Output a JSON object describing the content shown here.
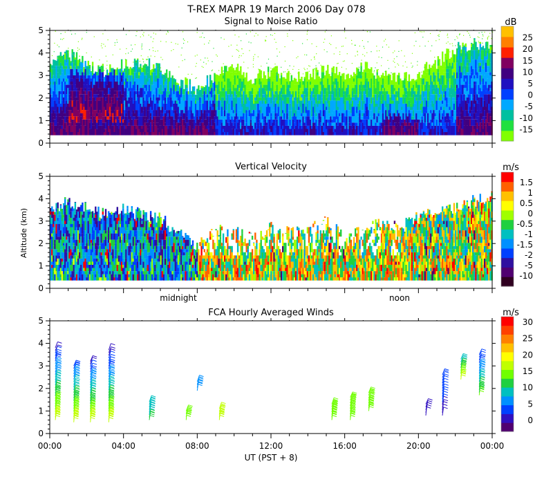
{
  "header": {
    "title": "T-REX   MAPR 19 March 2006 Day 078"
  },
  "shared": {
    "ylabel": "Altitude (km)",
    "y_ticks": [
      "0",
      "1",
      "2",
      "3",
      "4",
      "5"
    ],
    "ylim": [
      0,
      5
    ],
    "xlim": [
      0,
      24
    ],
    "x_major_ticks": [
      0,
      4,
      8,
      12,
      16,
      20,
      24
    ],
    "x_tick_labels": [
      "00:00",
      "04:00",
      "08:00",
      "12:00",
      "16:00",
      "20:00",
      "00:00"
    ],
    "xlabel": "UT   (PST + 8)",
    "local_labels": {
      "midnight": "midnight",
      "noon": "noon"
    },
    "local_positions": {
      "midnight": 8,
      "noon": 20
    }
  },
  "chart_data": [
    {
      "type": "heatmap",
      "title": "Signal to Noise Ratio",
      "units": "dB",
      "colorbar_labels": [
        "-15",
        "-10",
        "-5",
        "0",
        "5",
        "10",
        "15",
        "20",
        "25"
      ],
      "colorbar_colors": [
        "#80ff00",
        "#20e040",
        "#00c0a0",
        "#00a8ff",
        "#0040ff",
        "#2010c0",
        "#400080",
        "#800060",
        "#ff2000",
        "#ff8000",
        "#ffc000"
      ],
      "echo_top_km": [
        3.4,
        4.0,
        3.5,
        3.2,
        3.5,
        3.6,
        3.3,
        2.8,
        2.4,
        3.0,
        3.3,
        2.9,
        3.2,
        3.0,
        2.9,
        3.3,
        3.0,
        3.4,
        3.0,
        2.9,
        3.1,
        3.6,
        4.2,
        4.4,
        4.5
      ],
      "color_stops": [
        -15,
        -12,
        -9,
        -5,
        -2,
        2,
        6,
        10,
        14,
        20,
        26
      ]
    },
    {
      "type": "heatmap",
      "title": "Vertical Velocity",
      "units": "m/s",
      "colorbar_labels": [
        "-10",
        "-5",
        "-2",
        "-1.5",
        "-1",
        "-0.5",
        "0",
        "0.5",
        "1",
        "1.5"
      ],
      "colorbar_colors": [
        "#300020",
        "#500070",
        "#3010a0",
        "#0040ff",
        "#0090ff",
        "#00c0c0",
        "#20d040",
        "#a0ff00",
        "#ffff00",
        "#ffc000",
        "#ff6000",
        "#ff0000"
      ],
      "echo_top_km": [
        3.3,
        3.9,
        3.6,
        3.3,
        3.5,
        3.3,
        3.1,
        2.5,
        1.9,
        2.6,
        2.5,
        2.2,
        2.7,
        2.5,
        2.6,
        3.0,
        2.3,
        2.6,
        3.0,
        2.7,
        3.2,
        3.3,
        3.6,
        3.9,
        4.1
      ],
      "color_stops": [
        -10,
        -5,
        -2,
        -1.5,
        -1,
        -0.5,
        0,
        0.25,
        0.5,
        1,
        1.5,
        2
      ]
    },
    {
      "type": "barbs",
      "title": "FCA Hourly Averaged Winds",
      "units": "m/s",
      "colorbar_labels": [
        "0",
        "5",
        "10",
        "15",
        "20",
        "25",
        "30"
      ],
      "colorbar_colors": [
        "#500070",
        "#3010c0",
        "#0040ff",
        "#0090ff",
        "#00c0c0",
        "#20d040",
        "#70ff00",
        "#c0ff00",
        "#ffff00",
        "#ffc000",
        "#ff8000",
        "#ff4000",
        "#ff0000"
      ],
      "profiles": [
        {
          "hour": 0.3,
          "bottom_km": 0.6,
          "top_km": 3.8,
          "speed_low": 18,
          "speed_high": 4
        },
        {
          "hour": 1.3,
          "bottom_km": 0.5,
          "top_km": 3.0,
          "speed_low": 18,
          "speed_high": 6
        },
        {
          "hour": 2.2,
          "bottom_km": 0.5,
          "top_km": 3.2,
          "speed_low": 18,
          "speed_high": 4
        },
        {
          "hour": 3.2,
          "bottom_km": 0.5,
          "top_km": 3.7,
          "speed_low": 18,
          "speed_high": 3
        },
        {
          "hour": 5.4,
          "bottom_km": 0.6,
          "top_km": 1.4,
          "speed_low": 12,
          "speed_high": 10
        },
        {
          "hour": 7.4,
          "bottom_km": 0.6,
          "top_km": 1.0,
          "speed_low": 14,
          "speed_high": 14
        },
        {
          "hour": 8.0,
          "bottom_km": 1.9,
          "top_km": 2.3,
          "speed_low": 8,
          "speed_high": 8
        },
        {
          "hour": 9.2,
          "bottom_km": 0.6,
          "top_km": 1.1,
          "speed_low": 18,
          "speed_high": 18
        },
        {
          "hour": 15.3,
          "bottom_km": 0.6,
          "top_km": 1.3,
          "speed_low": 15,
          "speed_high": 14
        },
        {
          "hour": 16.3,
          "bottom_km": 0.6,
          "top_km": 1.6,
          "speed_low": 15,
          "speed_high": 14
        },
        {
          "hour": 17.3,
          "bottom_km": 1.0,
          "top_km": 1.8,
          "speed_low": 14,
          "speed_high": 14
        },
        {
          "hour": 20.4,
          "bottom_km": 0.8,
          "top_km": 1.3,
          "speed_low": 3,
          "speed_high": 3
        },
        {
          "hour": 21.3,
          "bottom_km": 0.8,
          "top_km": 2.6,
          "speed_low": 4,
          "speed_high": 6
        },
        {
          "hour": 22.3,
          "bottom_km": 2.4,
          "top_km": 3.3,
          "speed_low": 18,
          "speed_high": 10
        },
        {
          "hour": 23.3,
          "bottom_km": 1.7,
          "top_km": 3.5,
          "speed_low": 14,
          "speed_high": 5
        }
      ]
    }
  ]
}
